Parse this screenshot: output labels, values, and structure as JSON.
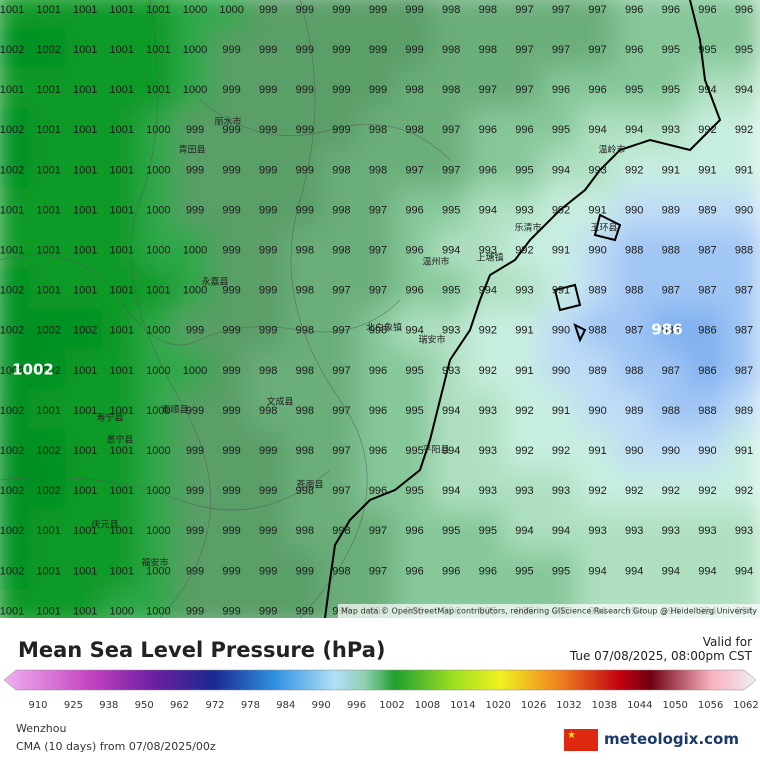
{
  "map": {
    "pressure_rows": [
      [
        1001,
        1001,
        1001,
        1001,
        1001,
        1000,
        1000,
        999,
        999,
        999,
        999,
        999,
        998,
        998,
        997,
        997,
        997,
        996,
        996,
        996,
        996
      ],
      [
        1002,
        1002,
        1001,
        1001,
        1001,
        1000,
        999,
        999,
        999,
        999,
        999,
        999,
        998,
        998,
        997,
        997,
        997,
        996,
        995,
        995,
        995
      ],
      [
        1001,
        1001,
        1001,
        1001,
        1001,
        1000,
        999,
        999,
        999,
        999,
        999,
        998,
        998,
        997,
        997,
        996,
        996,
        995,
        995,
        994,
        994
      ],
      [
        1002,
        1001,
        1001,
        1001,
        1000,
        999,
        999,
        999,
        999,
        999,
        998,
        998,
        997,
        996,
        996,
        995,
        994,
        994,
        993,
        992,
        992
      ],
      [
        1002,
        1001,
        1001,
        1001,
        1000,
        999,
        999,
        999,
        999,
        998,
        998,
        997,
        997,
        996,
        995,
        994,
        993,
        992,
        991,
        991,
        991
      ],
      [
        1001,
        1001,
        1001,
        1001,
        1000,
        999,
        999,
        999,
        999,
        998,
        997,
        996,
        995,
        994,
        993,
        992,
        991,
        990,
        989,
        989,
        990
      ],
      [
        1001,
        1001,
        1001,
        1001,
        1000,
        1000,
        999,
        999,
        998,
        998,
        997,
        996,
        994,
        993,
        992,
        991,
        990,
        988,
        988,
        987,
        988
      ],
      [
        1002,
        1001,
        1001,
        1001,
        1001,
        1000,
        999,
        999,
        998,
        997,
        997,
        996,
        995,
        994,
        993,
        991,
        989,
        988,
        987,
        987,
        987
      ],
      [
        1002,
        1002,
        1002,
        1001,
        1000,
        999,
        999,
        999,
        998,
        997,
        996,
        994,
        993,
        992,
        991,
        990,
        988,
        987,
        986,
        986,
        987
      ],
      [
        1002,
        1002,
        1001,
        1001,
        1000,
        1000,
        999,
        998,
        998,
        997,
        996,
        995,
        993,
        992,
        991,
        990,
        989,
        988,
        987,
        986,
        987
      ],
      [
        1002,
        1001,
        1001,
        1001,
        1000,
        999,
        999,
        998,
        998,
        997,
        996,
        995,
        994,
        993,
        992,
        991,
        990,
        989,
        988,
        988,
        989
      ],
      [
        1002,
        1002,
        1001,
        1001,
        1000,
        999,
        999,
        999,
        998,
        997,
        996,
        995,
        994,
        993,
        992,
        992,
        991,
        990,
        990,
        990,
        991
      ],
      [
        1002,
        1002,
        1001,
        1001,
        1000,
        999,
        999,
        999,
        998,
        997,
        996,
        995,
        994,
        993,
        993,
        993,
        992,
        992,
        992,
        992,
        992
      ],
      [
        1002,
        1001,
        1001,
        1001,
        1000,
        999,
        999,
        999,
        998,
        998,
        997,
        996,
        995,
        995,
        994,
        994,
        993,
        993,
        993,
        993,
        993
      ],
      [
        1002,
        1001,
        1001,
        1001,
        1000,
        999,
        999,
        999,
        999,
        998,
        997,
        996,
        996,
        996,
        995,
        995,
        994,
        994,
        994,
        994,
        994
      ],
      [
        1001,
        1001,
        1001,
        1000,
        1000,
        999,
        999,
        999,
        999,
        998,
        997,
        996,
        996,
        995,
        995,
        995,
        994,
        994,
        994,
        994,
        994
      ]
    ],
    "high_label": "1002",
    "low_label": "986",
    "places": [
      "丽水市",
      "温州市",
      "乐清市",
      "瑞安市",
      "玉环县",
      "平阳县",
      "苍南县",
      "泰顺县",
      "景宁县",
      "文成县",
      "永嘉县",
      "青田县",
      "庆元县",
      "福安市",
      "寿宁县",
      "温岭市",
      "上塘镇",
      "北白象镇"
    ],
    "attribution": "Map data © OpenStreetMap contributors, rendering GIScience Research Group @ Heidelberg University"
  },
  "legend": {
    "title": "Mean Sea Level Pressure (hPa)",
    "ticks": [
      910,
      925,
      938,
      950,
      962,
      972,
      978,
      984,
      990,
      996,
      1002,
      1008,
      1014,
      1020,
      1026,
      1032,
      1038,
      1044,
      1050,
      1056,
      1062
    ]
  },
  "footer": {
    "valid_label": "Valid for",
    "valid_time": "Tue 07/08/2025, 08:00pm CST",
    "location": "Wenzhou",
    "model": "CMA (10 days) from 07/08/2025/00z",
    "brand": "meteologix.com"
  }
}
